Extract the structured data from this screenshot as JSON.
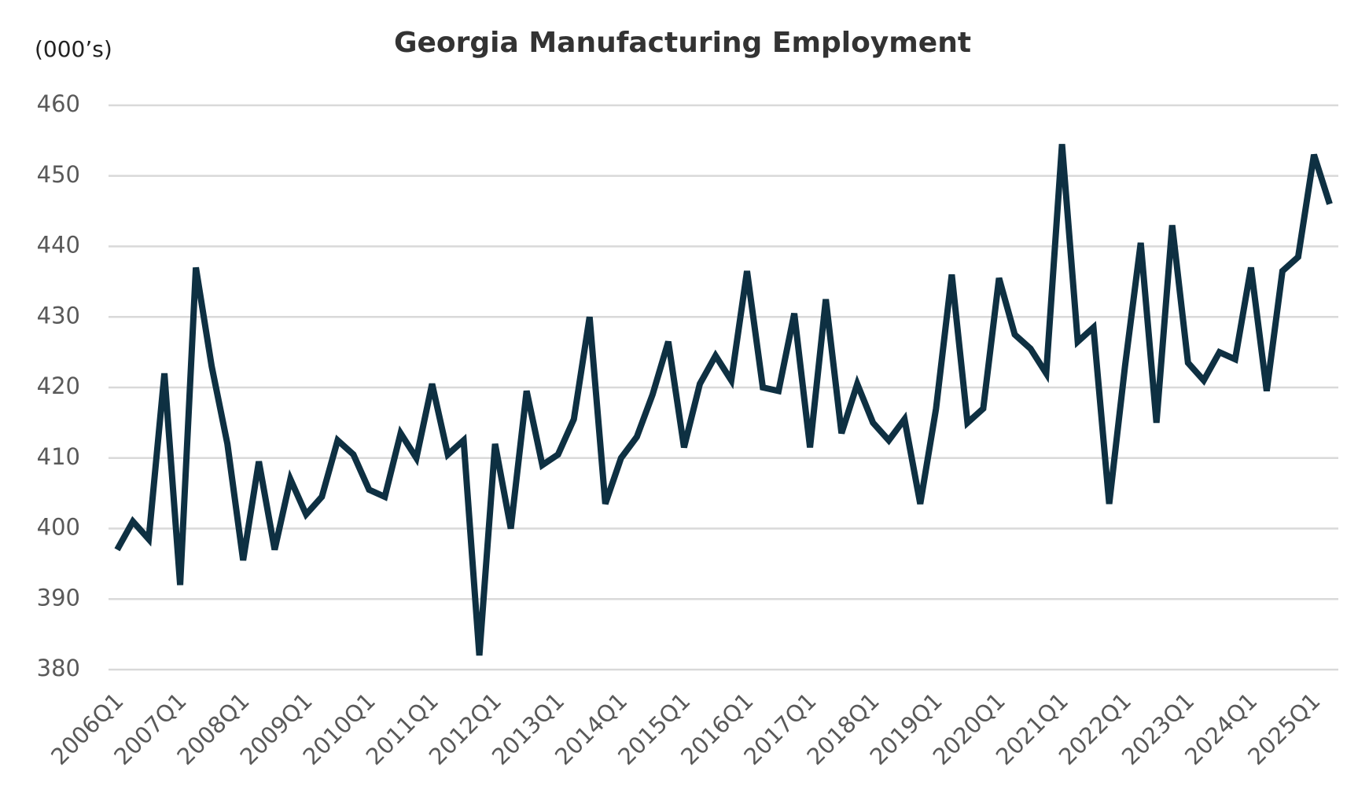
{
  "chart_data": {
    "type": "line",
    "title": "Georgia Manufacturing Employment",
    "y_axis_label": "(000’s)",
    "categories": [
      "2006Q1",
      null,
      null,
      null,
      "2007Q1",
      null,
      null,
      null,
      "2008Q1",
      null,
      null,
      null,
      "2009Q1",
      null,
      null,
      null,
      "2010Q1",
      null,
      null,
      null,
      "2011Q1",
      null,
      null,
      null,
      "2012Q1",
      null,
      null,
      null,
      "2013Q1",
      null,
      null,
      null,
      "2014Q1",
      null,
      null,
      null,
      "2015Q1",
      null,
      null,
      null,
      "2016Q1",
      null,
      null,
      null,
      "2017Q1",
      null,
      null,
      null,
      "2018Q1",
      null,
      null,
      null,
      "2019Q1",
      null,
      null,
      null,
      "2020Q1",
      null,
      null,
      null,
      "2021Q1",
      null,
      null,
      null,
      "2022Q1",
      null,
      null,
      null,
      "2023Q1",
      null,
      null,
      null,
      "2024Q1",
      null,
      null,
      null,
      "2025Q1",
      null
    ],
    "values": [
      397,
      401,
      398.5,
      422,
      392,
      437,
      423,
      412,
      395.5,
      409.5,
      397,
      407,
      402,
      404.5,
      412.5,
      410.5,
      405.5,
      404.5,
      413.5,
      410,
      420.5,
      410.5,
      412.5,
      382,
      412,
      400,
      419.5,
      409,
      410.5,
      415.5,
      430,
      403.5,
      410,
      413,
      419,
      426.5,
      411.5,
      420.5,
      424.5,
      421,
      436.5,
      420,
      419.5,
      430.5,
      411.5,
      432.5,
      413.5,
      420.5,
      415,
      412.5,
      415.5,
      403.5,
      417,
      436,
      415,
      417,
      435.5,
      427.5,
      425.5,
      422,
      454.5,
      426.5,
      428.5,
      403.5,
      423,
      440.5,
      415,
      443,
      423.5,
      421,
      425,
      424,
      437,
      419.5,
      436.5,
      438.5,
      453,
      446
    ],
    "color": "#0e3042",
    "ylim": [
      380,
      460
    ],
    "yticks": [
      380,
      390,
      400,
      410,
      420,
      430,
      440,
      450,
      460
    ],
    "grid": true
  }
}
